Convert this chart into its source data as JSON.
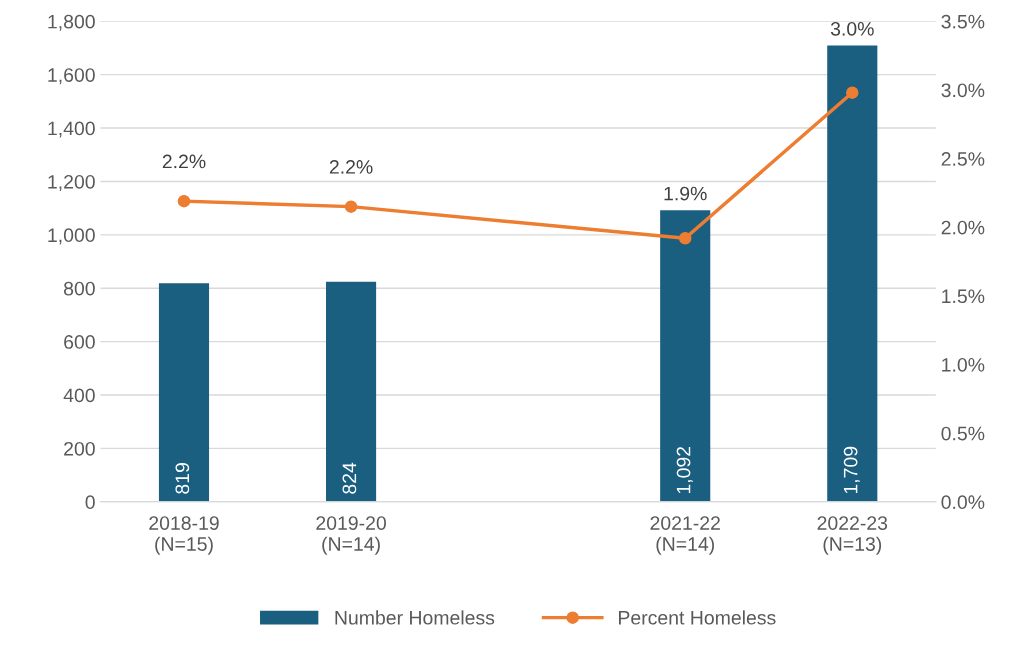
{
  "chart_data": {
    "type": "bar",
    "categories": [
      "2018-19\n(N=15)",
      "2019-20\n(N=14)",
      null,
      "2021-22\n(N=14)",
      "2022-23\n(N=13)"
    ],
    "series": [
      {
        "name": "Number Homeless",
        "color": "#1a5e80",
        "values": [
          819,
          824,
          null,
          1092,
          1709
        ],
        "value_labels": [
          "819",
          "824",
          null,
          "1,092",
          "1,709"
        ]
      },
      {
        "name": "Percent Homeless",
        "type": "line",
        "axis": "y2",
        "color": "#ed7d31",
        "marker": "circle",
        "values": [
          2.19,
          2.15,
          null,
          1.92,
          2.98
        ],
        "value_labels": [
          "2.2%",
          "2.2%",
          null,
          "1.9%",
          "3.0%"
        ]
      }
    ],
    "ylim": [
      0,
      1800
    ],
    "yticks": [
      0,
      {
        "value": 200,
        "label": "200"
      },
      {
        "value": 400,
        "label": "400"
      },
      {
        "value": 600,
        "label": "600"
      },
      {
        "value": 800,
        "label": "800"
      },
      {
        "value": 1000,
        "label": "1,000"
      },
      {
        "value": 1200,
        "label": "1,200"
      },
      {
        "value": 1400,
        "label": "1,400"
      },
      {
        "value": 1600,
        "label": "1,600"
      },
      {
        "value": 1800,
        "label": "1,800"
      }
    ],
    "y2lim": [
      0,
      3.5
    ],
    "y2ticks": [
      {
        "value": 0,
        "label": "0.0%"
      },
      {
        "value": 0.5,
        "label": "0.5%"
      },
      {
        "value": 1,
        "label": "1.0%"
      },
      {
        "value": 1.5,
        "label": "1.5%"
      },
      {
        "value": 2,
        "label": "2.0%"
      },
      {
        "value": 2.5,
        "label": "2.5%"
      },
      {
        "value": 3,
        "label": "3.0%"
      },
      {
        "value": 3.5,
        "label": "3.5%"
      }
    ],
    "grid": "y",
    "legend": "bottom"
  }
}
